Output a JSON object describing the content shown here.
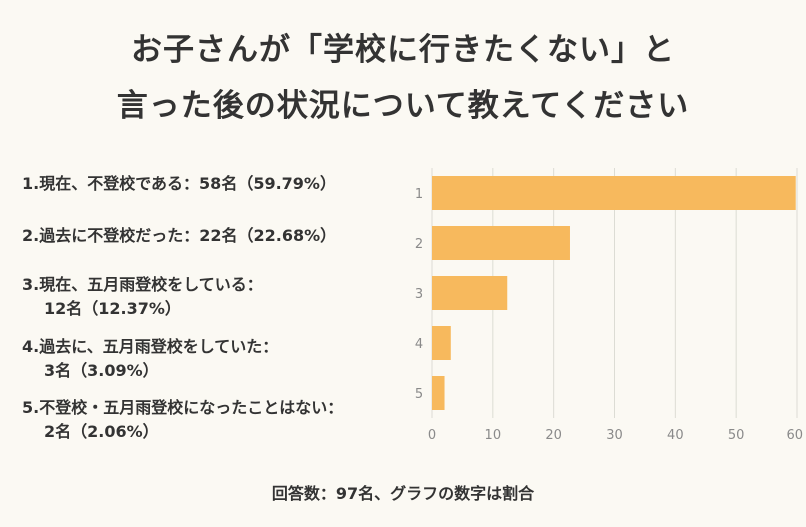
{
  "title": {
    "line1": "お子さんが「学校に行きたくない」と",
    "line2": "言った後の状況について教えてください"
  },
  "legend": [
    {
      "line1": "1.現在、不登校である：58名（59.79%）",
      "line2": ""
    },
    {
      "line1": "2.過去に不登校だった：22名（22.68%）",
      "line2": ""
    },
    {
      "line1": "3.現在、五月雨登校をしている：",
      "line2": "12名（12.37%）"
    },
    {
      "line1": "4.過去に、五月雨登校をしていた：",
      "line2": "3名（3.09%）"
    },
    {
      "line1": "5.不登校・五月雨登校になったことはない：",
      "line2": "2名（2.06%）"
    }
  ],
  "footer": "回答数：97名、グラフの数字は割合",
  "chart_data": {
    "type": "bar",
    "orientation": "horizontal",
    "categories": [
      "1",
      "2",
      "3",
      "4",
      "5"
    ],
    "values": [
      59.79,
      22.68,
      12.37,
      3.09,
      2.06
    ],
    "xlim": [
      0,
      60
    ],
    "xticks": [
      0,
      10,
      20,
      30,
      40,
      50,
      60
    ],
    "grid": true,
    "bar_color": "#f7b95d",
    "grid_color": "#dcdcd4",
    "tick_color": "#8a8a8a"
  }
}
